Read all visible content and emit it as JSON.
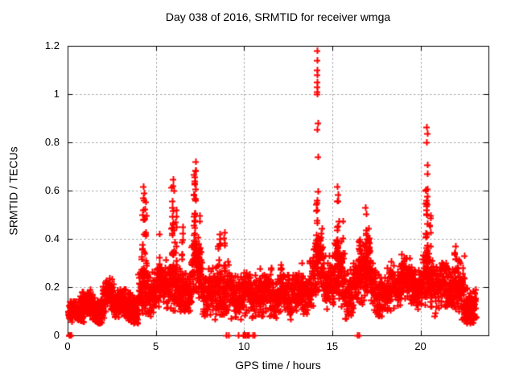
{
  "chart_data": {
    "type": "scatter",
    "title": "Day 038 of 2016, SRMTID for receiver wmga",
    "xlabel": "GPS time / hours",
    "ylabel": "SRMTID / TECUs",
    "xlim": [
      0,
      23.85
    ],
    "ylim": [
      0,
      1.2
    ],
    "xticks": [
      0,
      5,
      10,
      15,
      20
    ],
    "yticks": [
      0,
      0.2,
      0.4,
      0.6,
      0.8,
      1,
      1.2
    ],
    "xtick_labels": [
      "0",
      "5",
      "10",
      "15",
      "20"
    ],
    "ytick_labels": [
      "0",
      "0.2",
      "0.4",
      "0.6",
      "0.8",
      "1",
      "1.2"
    ],
    "grid": true,
    "legend": "none",
    "marker": {
      "shape": "plus",
      "color": "#ff0000",
      "size": 8,
      "stroke": 2
    },
    "frame_color": "#000000",
    "grid_color": "#a6a6a6",
    "text_color": "#000000",
    "seed": 38,
    "notable_points": [
      [
        14.13,
        1.18
      ],
      [
        14.13,
        1.14
      ],
      [
        14.12,
        1.1
      ],
      [
        14.15,
        1.08
      ],
      [
        14.13,
        1.05
      ],
      [
        14.12,
        1.03
      ],
      [
        14.14,
        1.01
      ],
      [
        14.13,
        1.0
      ],
      [
        14.16,
        0.88
      ],
      [
        14.13,
        0.855
      ],
      [
        14.17,
        0.74
      ],
      [
        20.35,
        0.862
      ],
      [
        20.37,
        0.838
      ],
      [
        20.36,
        0.8
      ],
      [
        20.37,
        0.707
      ],
      [
        20.38,
        0.67
      ],
      [
        7.24,
        0.72
      ],
      [
        7.25,
        0.683
      ],
      [
        7.22,
        0.655
      ],
      [
        7.19,
        0.63
      ],
      [
        5.97,
        0.648
      ],
      [
        5.99,
        0.62
      ],
      [
        6.02,
        0.6
      ],
      [
        4.28,
        0.615
      ],
      [
        4.31,
        0.59
      ],
      [
        4.3,
        0.57
      ],
      [
        15.28,
        0.615
      ],
      [
        15.31,
        0.585
      ],
      [
        15.3,
        0.555
      ],
      [
        16.88,
        0.53
      ],
      [
        16.9,
        0.505
      ],
      [
        20.3,
        0.6
      ],
      [
        20.32,
        0.55
      ],
      [
        20.33,
        0.52
      ],
      [
        21.97,
        0.37
      ],
      [
        8.62,
        0.42
      ],
      [
        5.21,
        0.42
      ],
      [
        6.52,
        0.45
      ],
      [
        22.48,
        0.33
      ]
    ],
    "zero_points": [
      0.07,
      0.1,
      0.13,
      0.17,
      0.2,
      9.0,
      9.1,
      9.65,
      9.95,
      10.0,
      10.05,
      10.1,
      10.15,
      10.2,
      10.25,
      10.5,
      10.6,
      16.4,
      16.5
    ],
    "baseline_bands": [
      [
        0.05,
        0.6,
        0.03,
        0.14,
        80
      ],
      [
        0.6,
        2.0,
        0.05,
        0.19,
        210
      ],
      [
        2.0,
        2.6,
        0.07,
        0.25,
        85
      ],
      [
        2.6,
        4.0,
        0.05,
        0.19,
        200
      ],
      [
        4.0,
        4.6,
        0.08,
        0.3,
        85
      ],
      [
        4.6,
        5.5,
        0.08,
        0.28,
        115
      ],
      [
        5.5,
        6.4,
        0.1,
        0.32,
        110
      ],
      [
        6.4,
        7.0,
        0.1,
        0.3,
        80
      ],
      [
        7.0,
        7.6,
        0.12,
        0.38,
        85
      ],
      [
        7.6,
        8.4,
        0.05,
        0.28,
        100
      ],
      [
        8.4,
        9.2,
        0.08,
        0.35,
        100
      ],
      [
        9.2,
        10.6,
        0.05,
        0.26,
        170
      ],
      [
        10.6,
        11.6,
        0.08,
        0.3,
        125
      ],
      [
        11.6,
        12.7,
        0.06,
        0.25,
        135
      ],
      [
        12.7,
        13.7,
        0.09,
        0.28,
        125
      ],
      [
        13.7,
        14.5,
        0.12,
        0.4,
        100
      ],
      [
        14.5,
        15.1,
        0.08,
        0.33,
        80
      ],
      [
        15.1,
        15.7,
        0.12,
        0.42,
        80
      ],
      [
        15.7,
        16.4,
        0.07,
        0.33,
        90
      ],
      [
        16.4,
        17.2,
        0.1,
        0.4,
        100
      ],
      [
        17.2,
        18.3,
        0.08,
        0.3,
        135
      ],
      [
        18.3,
        19.5,
        0.1,
        0.32,
        150
      ],
      [
        19.5,
        20.1,
        0.1,
        0.3,
        80
      ],
      [
        20.1,
        20.8,
        0.12,
        0.4,
        90
      ],
      [
        20.8,
        21.9,
        0.08,
        0.3,
        135
      ],
      [
        21.9,
        22.4,
        0.06,
        0.33,
        70
      ],
      [
        22.4,
        23.15,
        0.05,
        0.22,
        110
      ]
    ],
    "spike_streaks": [
      [
        4.3,
        0.2,
        0.6,
        26,
        0.12
      ],
      [
        4.45,
        0.2,
        0.5,
        12,
        0.08
      ],
      [
        5.2,
        0.2,
        0.4,
        10,
        0.06
      ],
      [
        5.95,
        0.25,
        0.63,
        28,
        0.1
      ],
      [
        6.15,
        0.2,
        0.52,
        12,
        0.08
      ],
      [
        6.5,
        0.2,
        0.44,
        10,
        0.06
      ],
      [
        7.2,
        0.3,
        0.7,
        30,
        0.08
      ],
      [
        7.45,
        0.2,
        0.52,
        14,
        0.08
      ],
      [
        8.6,
        0.2,
        0.41,
        12,
        0.08
      ],
      [
        8.85,
        0.2,
        0.44,
        10,
        0.08
      ],
      [
        10.9,
        0.18,
        0.35,
        8,
        0.06
      ],
      [
        12.1,
        0.15,
        0.3,
        8,
        0.06
      ],
      [
        13.3,
        0.15,
        0.3,
        8,
        0.06
      ],
      [
        14.13,
        0.3,
        0.62,
        24,
        0.06
      ],
      [
        14.35,
        0.2,
        0.45,
        10,
        0.06
      ],
      [
        15.3,
        0.25,
        0.6,
        20,
        0.07
      ],
      [
        15.55,
        0.2,
        0.48,
        10,
        0.06
      ],
      [
        16.55,
        0.2,
        0.47,
        12,
        0.06
      ],
      [
        16.9,
        0.2,
        0.5,
        18,
        0.08
      ],
      [
        17.1,
        0.2,
        0.45,
        10,
        0.06
      ],
      [
        18.9,
        0.15,
        0.35,
        8,
        0.06
      ],
      [
        20.35,
        0.3,
        0.62,
        26,
        0.08
      ],
      [
        20.55,
        0.2,
        0.5,
        14,
        0.07
      ],
      [
        21.95,
        0.15,
        0.35,
        10,
        0.05
      ],
      [
        22.45,
        0.1,
        0.3,
        8,
        0.08
      ],
      [
        22.6,
        0.08,
        0.2,
        15,
        0.15
      ]
    ]
  }
}
